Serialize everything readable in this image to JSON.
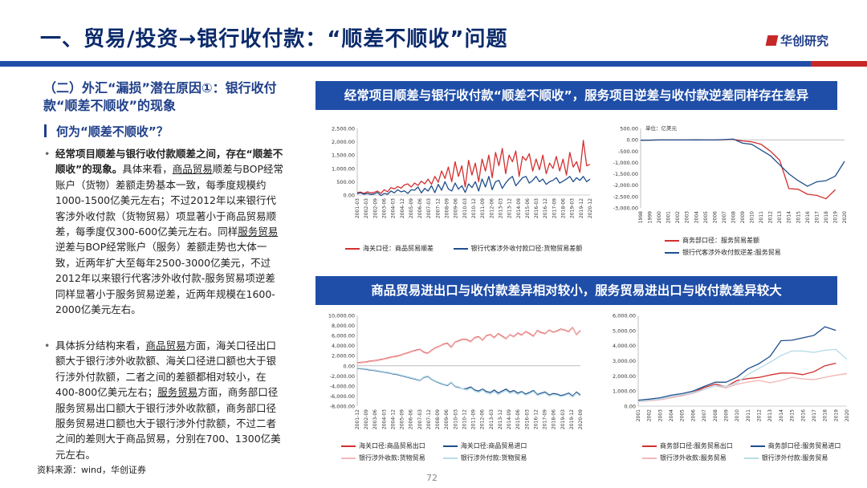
{
  "page": {
    "title": "一、贸易/投资→银行收付款：“顺差不顺收”问题",
    "logo": "华创研究",
    "subheading": "（二）外汇“漏损”潜在原因①：银行收付款“顺差不顺收”的现象",
    "question": "何为“顺差不顺收”？",
    "bullets": [
      {
        "lead": "经常项目顺差与银行收付款顺差之间，存在“顺差不顺收”的现象。",
        "t1": "具体来看，",
        "u1": "商品贸易",
        "t2": "顺差与BOP经常账户（货物）差额走势基本一致，每季度规模约1000-1500亿美元左右；不过2012年以来银行代客涉外收付款（货物贸易）项显著小于商品贸易顺差，每季度仅300-600亿美元左右。同样",
        "u2": "服务贸易",
        "t3": "逆差与BOP经常账户（服务）差额走势也大体一致，近两年扩大至每年2500-3000亿美元，不过2012年以来银行代客涉外收付款-服务贸易项逆差同样显著小于服务贸易逆差，近两年规模在1600-2000亿美元左右。"
      },
      {
        "t1": "具体拆分结构来看，",
        "u1": "商品贸易",
        "t2": "方面，海关口径出口额大于银行涉外收款额、海关口径进口额也大于银行涉外付款额，二者之间的差额都相对较小，在400-800亿美元左右；",
        "u2": "服务贸易",
        "t3": "方面，商务部口径服务贸易出口额大于银行涉外收款额，商务部口径服务贸易进口额也大于银行涉外付款额，不过二者之间的差则大于商品贸易，分别在700、1300亿美元左右。"
      }
    ],
    "source": "资料来源：wind，华创证券",
    "page_number": "72"
  },
  "banners": {
    "top": "经常项目顺差与银行收付款“顺差不顺收”，服务项目逆差与收付款逆差同样存在差异",
    "bottom": "商品贸易进出口与收付款差异相对较小，服务贸易进出口与收付款差异较大"
  },
  "colors": {
    "red": "#d32f2f",
    "blue": "#1f4e8c",
    "pink": "#f2b8b8",
    "lightblue": "#b8dde8",
    "navy": "#0b2a6b",
    "banner": "#1f4ea8"
  },
  "chart_data": [
    {
      "type": "line",
      "ylim": [
        0,
        2500
      ],
      "yticks": [
        "2,500.00",
        "2,000.00",
        "1,500.00",
        "1,000.00",
        "500.00",
        "0.00"
      ],
      "xticks": [
        "2001-03",
        "2002-03",
        "2002-09",
        "2003-06",
        "2004-03",
        "2004-12",
        "2005-09",
        "2006-06",
        "2007-03",
        "2007-12",
        "2008-09",
        "2009-06",
        "2010-03",
        "2010-12",
        "2011-09",
        "2012-06",
        "2013-03",
        "2013-12",
        "2014-09",
        "2015-06",
        "2016-03",
        "2016-12",
        "2017-09",
        "2018-06",
        "2019-03",
        "2019-12",
        "2020-12"
      ],
      "series": [
        {
          "name": "海关口径：商品贸易顺差",
          "color": "red",
          "values": [
            90,
            110,
            60,
            120,
            80,
            100,
            150,
            60,
            200,
            120,
            280,
            230,
            320,
            260,
            380,
            420,
            300,
            450,
            360,
            520,
            420,
            600,
            400,
            700,
            480,
            900,
            620,
            1050,
            500,
            1250,
            700,
            1100,
            300,
            1300,
            750,
            1200,
            500,
            1350,
            900,
            1500,
            650,
            1600,
            1100,
            1750,
            800,
            1500,
            1250,
            1650,
            700,
            1450,
            1300,
            1550,
            900,
            1350,
            950,
            1500,
            800,
            1200,
            1000,
            1450,
            900,
            1350,
            750,
            1600,
            1050,
            1250,
            850,
            2050,
            1100,
            1150
          ]
        },
        {
          "name": "银行代客涉外收付款口径:货物贸易差额",
          "color": "blue",
          "values": [
            50,
            80,
            30,
            60,
            20,
            40,
            100,
            -20,
            60,
            30,
            150,
            80,
            200,
            120,
            160,
            60,
            200,
            180,
            300,
            80,
            250,
            150,
            350,
            90,
            400,
            180,
            500,
            230,
            150,
            450,
            220,
            350,
            100,
            420,
            280,
            500,
            150,
            600,
            300,
            700,
            200,
            500,
            550,
            250,
            450,
            600,
            700,
            350,
            500,
            650,
            700,
            450,
            550,
            700,
            500,
            600,
            400,
            500,
            550,
            650,
            450,
            520,
            600,
            700,
            500,
            650,
            550,
            700,
            500,
            600
          ]
        }
      ]
    },
    {
      "type": "line",
      "ylim": [
        -3000,
        500
      ],
      "unit": "单位：亿美元",
      "yticks": [
        "500.00",
        "0.00",
        "-500.00",
        "-1,000.00",
        "-1,500.00",
        "-2,000.00",
        "-2,500.00",
        "-3,000.00"
      ],
      "xticks": [
        "1998",
        "1999",
        "2000",
        "2001",
        "2002",
        "2003",
        "2004",
        "2005",
        "2006",
        "2007",
        "2008",
        "2009",
        "2010",
        "2011",
        "2012",
        "2013",
        "2014",
        "2015",
        "2016",
        "2017",
        "2018",
        "2019",
        "2020"
      ],
      "series": [
        {
          "name": "商务部口径：服务贸易差额",
          "color": "red",
          "values": [
            -20,
            -15,
            -10,
            -10,
            -10,
            -10,
            -5,
            -10,
            -10,
            0,
            20,
            -50,
            -90,
            -200,
            -500,
            -900,
            -2150,
            -2180,
            -2400,
            -2450,
            -2600,
            -2200,
            null
          ]
        },
        {
          "name": "银行代客涉外收付款逆差:服务贸易",
          "color": "blue",
          "values": [
            -20,
            -15,
            -10,
            -10,
            -10,
            -10,
            -5,
            -10,
            -10,
            10,
            30,
            -150,
            -200,
            -450,
            -700,
            -1100,
            -1500,
            -1800,
            -2050,
            -1850,
            -1800,
            -1600,
            -950
          ]
        }
      ]
    },
    {
      "type": "line",
      "ylim": [
        -8000,
        10000
      ],
      "yticks": [
        "10,000.00",
        "8,000.00",
        "6,000.00",
        "4,000.00",
        "2,000.00",
        "0.00",
        "-2,000.00",
        "-4,000.00",
        "-6,000.00",
        "-8,000.00"
      ],
      "xticks": [
        "2001-12",
        "2002-09",
        "2003-06",
        "2004-03",
        "2004-12",
        "2005-09",
        "2006-06",
        "2007-03",
        "2007-12",
        "2008-09",
        "2009-06",
        "2010-03",
        "2010-12",
        "2011-09",
        "2012-06",
        "2013-03",
        "2013-12",
        "2014-09",
        "2015-06",
        "2016-03",
        "2016-12",
        "2017-09",
        "2018-06",
        "2019-03",
        "2019-12",
        "2020-09"
      ],
      "series": [
        {
          "name": "海关口径:商品贸易出口",
          "color": "red",
          "values": [
            600,
            700,
            750,
            900,
            1000,
            1100,
            1250,
            1400,
            1600,
            1800,
            1900,
            2100,
            2400,
            2600,
            2900,
            3100,
            3300,
            2700,
            2500,
            3100,
            3600,
            3900,
            4300,
            4500,
            3700,
            4700,
            5000,
            5300,
            5200,
            4800,
            5600,
            5800,
            5100,
            6000,
            6200,
            5600,
            6400,
            5900,
            5400,
            6200,
            5800,
            6500,
            6100,
            6800,
            6400,
            5900,
            7000,
            6600,
            6400,
            7100,
            6700,
            6900,
            7300,
            7100,
            6800,
            7600,
            6200,
            7000
          ]
        },
        {
          "name": "海关口径:商品贸易进口",
          "color": "blue",
          "values": [
            -500,
            -600,
            -650,
            -800,
            -900,
            -1000,
            -1150,
            -1300,
            -1400,
            -1600,
            -1700,
            -1900,
            -2100,
            -2300,
            -2500,
            -2700,
            -2900,
            -2300,
            -2100,
            -2700,
            -3100,
            -3400,
            -3700,
            -3900,
            -3300,
            -4100,
            -4300,
            -4600,
            -4500,
            -4200,
            -4800,
            -5000,
            -4600,
            -5100,
            -5300,
            -4800,
            -5400,
            -5000,
            -4600,
            -5200,
            -4900,
            -5400,
            -5100,
            -5600,
            -5300,
            -4900,
            -5700,
            -5400,
            -5200,
            -5800,
            -5500,
            -5600,
            -5900,
            -5700,
            -5400,
            -6000,
            -5200,
            -5800
          ]
        },
        {
          "name": "银行涉外收款:货物贸易",
          "color": "pink",
          "values": [
            500,
            600,
            650,
            800,
            900,
            1000,
            1150,
            1300,
            1500,
            1700,
            1800,
            2000,
            2300,
            2500,
            2800,
            3000,
            3200,
            2600,
            2400,
            3000,
            3500,
            3800,
            4200,
            4400,
            3600,
            4600,
            4900,
            5200,
            5100,
            4700,
            5500,
            5700,
            5000,
            5900,
            6100,
            5500,
            6300,
            5800,
            5300,
            6100,
            5700,
            6400,
            6000,
            6700,
            6300,
            5800,
            6900,
            6500,
            6300,
            7000,
            6600,
            6800,
            7200,
            7000,
            6700,
            7500,
            6100,
            6900
          ]
        },
        {
          "name": "银行涉外付款:货物贸易",
          "color": "lightblue",
          "values": [
            -400,
            -500,
            -550,
            -700,
            -800,
            -900,
            -1050,
            -1200,
            -1300,
            -1500,
            -1600,
            -1800,
            -2000,
            -2200,
            -2400,
            -2600,
            -2800,
            -2200,
            -2000,
            -2600,
            -3000,
            -3300,
            -3600,
            -3800,
            -3200,
            -4000,
            -4200,
            -4600,
            -4800,
            -4400,
            -5000,
            -5300,
            -4800,
            -5400,
            -5600,
            -5100,
            -5700,
            -5300,
            -4900,
            -5500,
            -5200,
            -5700,
            -5300,
            -5800,
            -5500,
            -5100,
            -5900,
            -5600,
            -5400,
            -6000,
            -5700,
            -5800,
            -6100,
            -5900,
            -5600,
            -6200,
            -5400,
            -6000
          ]
        }
      ]
    },
    {
      "type": "line",
      "ylim": [
        0,
        6000
      ],
      "yticks": [
        "6,000.00",
        "5,000.00",
        "4,000.00",
        "3,000.00",
        "2,000.00",
        "1,000.00",
        "0.00"
      ],
      "xticks": [
        "2001",
        "2002",
        "2003",
        "2004",
        "2005",
        "2006",
        "2007",
        "2008",
        "2009",
        "2010",
        "2011",
        "2012",
        "2013",
        "2014",
        "2015",
        "2016",
        "2017",
        "2018",
        "2019",
        "2020"
      ],
      "series": [
        {
          "name": "商务部口径:服务贸易出口",
          "color": "red",
          "values": [
            330,
            390,
            460,
            620,
            740,
            910,
            1220,
            1460,
            1290,
            1700,
            1820,
            1900,
            2060,
            2190,
            2180,
            2080,
            2280,
            2670,
            2840,
            null
          ]
        },
        {
          "name": "商务部口径:服务贸易进口",
          "color": "blue",
          "values": [
            390,
            460,
            550,
            720,
            830,
            1000,
            1300,
            1580,
            1580,
            1920,
            2480,
            2810,
            3290,
            4330,
            4360,
            4520,
            4680,
            5250,
            5010,
            null
          ]
        },
        {
          "name": "银行涉外收款:服务贸易",
          "color": "pink",
          "values": [
            300,
            350,
            420,
            560,
            680,
            850,
            1100,
            1350,
            1200,
            1450,
            1600,
            1700,
            1550,
            1700,
            1900,
            1800,
            1750,
            1900,
            2050,
            2150
          ]
        },
        {
          "name": "银行涉外付款:服务贸易",
          "color": "lightblue",
          "values": [
            330,
            390,
            470,
            620,
            760,
            900,
            1100,
            1350,
            1300,
            1550,
            2100,
            2500,
            2900,
            3350,
            3650,
            3650,
            3550,
            3700,
            3750,
            3100
          ]
        }
      ]
    }
  ]
}
